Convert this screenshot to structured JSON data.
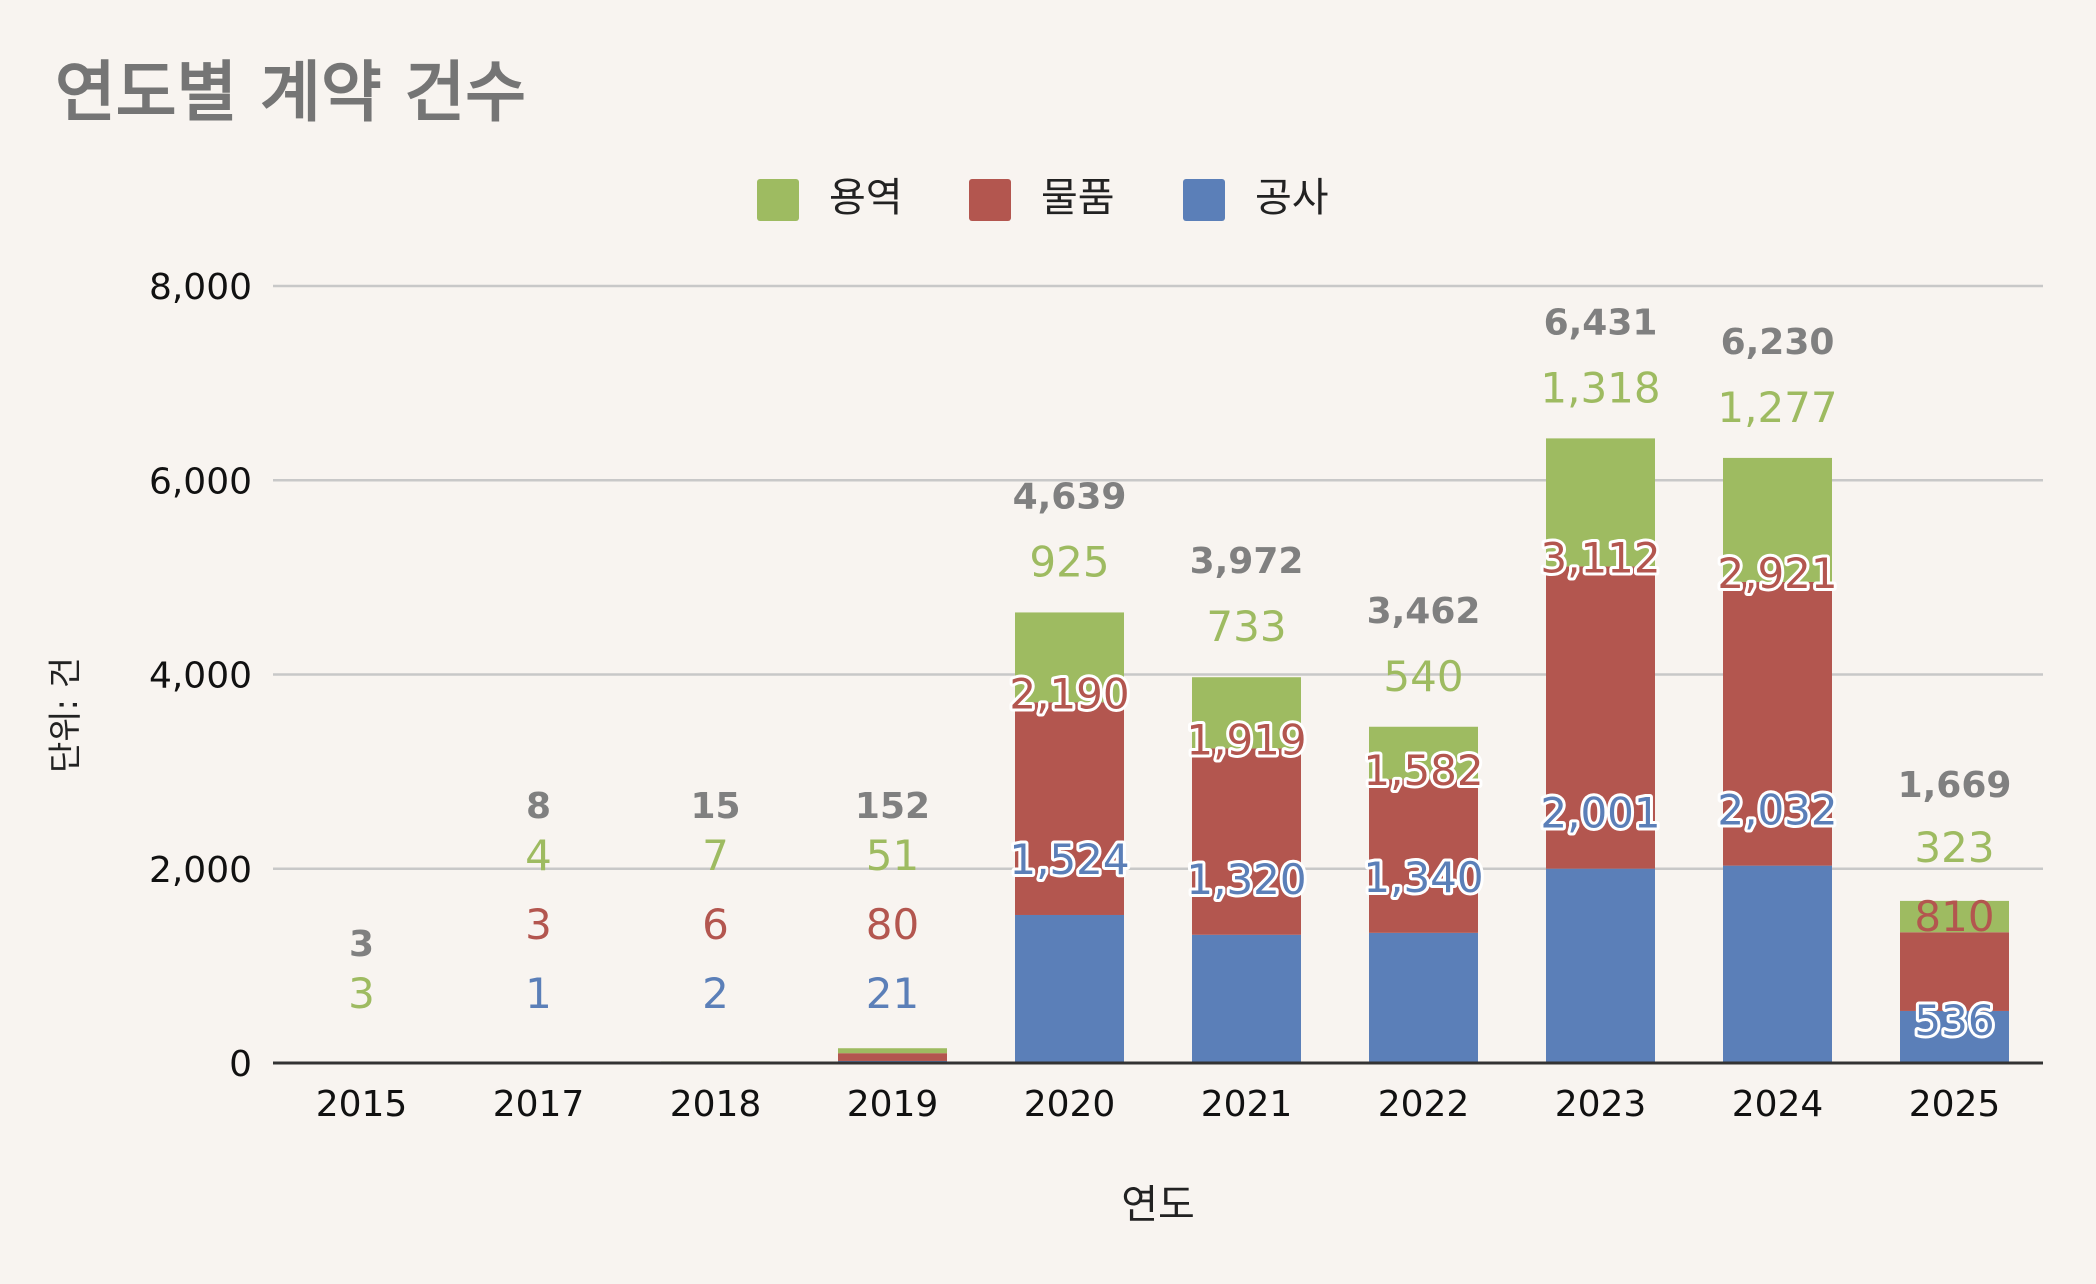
{
  "chart_data": {
    "type": "bar",
    "stacked": true,
    "title": "연도별 계약 건수",
    "xlabel": "연도",
    "ylabel": "단위: 건",
    "categories": [
      "2015",
      "2017",
      "2018",
      "2019",
      "2020",
      "2021",
      "2022",
      "2023",
      "2024",
      "2025"
    ],
    "series": [
      {
        "name": "공사",
        "color": "#5b7fb8",
        "values": [
          null,
          1,
          2,
          21,
          1524,
          1320,
          1340,
          2001,
          2032,
          536
        ],
        "labels": [
          "",
          "1",
          "2",
          "21",
          "1,524",
          "1,320",
          "1,340",
          "2,001",
          "2,032",
          "536"
        ]
      },
      {
        "name": "물품",
        "color": "#b3564f",
        "values": [
          null,
          3,
          6,
          80,
          2190,
          1919,
          1582,
          3112,
          2921,
          810
        ],
        "labels": [
          "",
          "3",
          "6",
          "80",
          "2,190",
          "1,919",
          "1,582",
          "3,112",
          "2,921",
          "810"
        ]
      },
      {
        "name": "용역",
        "color": "#9ebb61",
        "values": [
          3,
          4,
          7,
          51,
          925,
          733,
          540,
          1318,
          1277,
          323
        ],
        "labels": [
          "3",
          "4",
          "7",
          "51",
          "925",
          "733",
          "540",
          "1,318",
          "1,277",
          "323"
        ]
      }
    ],
    "totals": [
      3,
      8,
      15,
      152,
      4639,
      3972,
      3462,
      6431,
      6230,
      1669
    ],
    "total_labels": [
      "3",
      "8",
      "15",
      "152",
      "4,639",
      "3,972",
      "3,462",
      "6,431",
      "6,230",
      "1,669"
    ],
    "ylim": [
      0,
      8000
    ],
    "yticks": [
      0,
      2000,
      4000,
      6000,
      8000
    ],
    "ytick_labels": [
      "0",
      "2,000",
      "4,000",
      "6,000",
      "8,000"
    ],
    "grid": true,
    "legend_position": "top",
    "legend_order": [
      "용역",
      "물품",
      "공사"
    ],
    "colors": {
      "background": "#f8f4f0",
      "title": "#757575",
      "total_label": "#808080",
      "grid": "#c8c8c8",
      "axis": "#333333"
    }
  }
}
